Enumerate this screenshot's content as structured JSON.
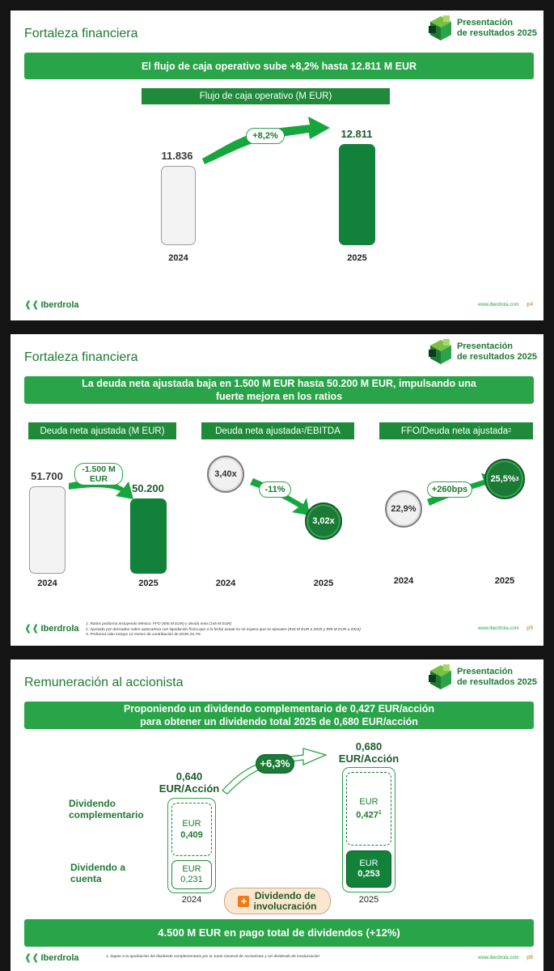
{
  "header": {
    "presentation_line1": "Presentación",
    "presentation_line2": "de resultados 2025"
  },
  "brand": {
    "logo_text": "Iberdrola",
    "website": "www.iberdrola.com",
    "colors": {
      "primary_green": "#2aa449",
      "dark_green": "#12823a",
      "gray": "#9c9c9c"
    }
  },
  "slide1": {
    "title": "Fortaleza financiera",
    "banner": "El flujo de caja operativo sube +8,2% hasta 12.811 M EUR",
    "chart_label": "Flujo de caja operativo (M EUR)",
    "growth_label": "+8,2%",
    "page": "p4"
  },
  "slide2": {
    "title": "Fortaleza financiera",
    "banner": "La deuda neta ajustada baja en 1.500 M EUR hasta 50.200 M EUR, impulsando una fuerte mejora en los ratios",
    "panel1_label": "Deuda neta ajustada (M EUR)",
    "panel1_change_line1": "-1.500 M",
    "panel1_change_line2": "EUR",
    "panel2_label": "Deuda neta ajustada",
    "panel2_label_sup": "1",
    "panel2_label_suffix": "/EBITDA",
    "panel2_change": "-11%",
    "panel3_label": "FFO/Deuda neta ajustada",
    "panel3_label_sup": "2",
    "panel3_change": "+260bps",
    "panel3_value_2025_sup": "3",
    "notes": [
      "1.    Ratios proforma incluyendo México: FFO (500 M EUR) y deuda neta (145 M EUR)",
      "2.    Ajustado por derivados sobre autocartera con liquidación física que a la fecha actual no se espera que se ejecuten (944 M EUR a 2025 y 995 M EUR a 2024)",
      "3.    Proforma ratio incluye 12 meses de contribución de ENW 25,7%"
    ],
    "page": "p5"
  },
  "slide3": {
    "title": "Remuneración al accionista",
    "banner_line1": "Proponiendo un dividendo complementario de 0,427 EUR/acción",
    "banner_line2": "para obtener un dividendo total 2025 de 0,680 EUR/acción",
    "label_complementario_line1": "Dividendo",
    "label_complementario_line2": "complementario",
    "label_cuenta_line1": "Dividendo a",
    "label_cuenta_line2": "cuenta",
    "unit": "EUR",
    "total_2024_line1": "0,640",
    "total_2024_line2": "EUR/Acción",
    "total_2025_line1": "0,680",
    "total_2025_line2": "EUR/Acción",
    "comp_2024": "0,409",
    "cuenta_2024": "0,231",
    "comp_2025": "0,427",
    "comp_2025_sup": "1",
    "cuenta_2025": "0,253",
    "growth_label": "+6,3%",
    "plus_sign": "+",
    "involucracion_line1": "Dividendo de",
    "involucracion_line2": "involucración",
    "bottom_banner": "4.500 M EUR en pago total de dividendos (+12%)",
    "note": "1. Sujeto a la aprobación del dividendo complementario por la Junta General de Accionistas y sin dividendo de involucración",
    "page": "p6"
  },
  "chart_data": [
    {
      "type": "bar",
      "title": "Flujo de caja operativo (M EUR)",
      "categories": [
        "2024",
        "2025"
      ],
      "values": [
        11836,
        12811
      ],
      "value_labels": [
        "11.836",
        "12.811"
      ]
    },
    {
      "type": "bar",
      "title": "Deuda neta ajustada (M EUR)",
      "categories": [
        "2024",
        "2025"
      ],
      "values": [
        51700,
        50200
      ],
      "value_labels": [
        "51.700",
        "50.200"
      ]
    },
    {
      "type": "scatter",
      "title": "Deuda neta ajustada/EBITDA",
      "categories": [
        "2024",
        "2025"
      ],
      "values": [
        3.4,
        3.02
      ],
      "value_labels": [
        "3,40x",
        "3,02x"
      ]
    },
    {
      "type": "scatter",
      "title": "FFO/Deuda neta ajustada",
      "categories": [
        "2024",
        "2025"
      ],
      "values": [
        22.9,
        25.5
      ],
      "value_labels": [
        "22,9%",
        "25,5%"
      ]
    },
    {
      "type": "bar",
      "title": "Remuneración al accionista (EUR/acción)",
      "categories": [
        "2024",
        "2025"
      ],
      "series": [
        {
          "name": "Dividendo a cuenta",
          "values": [
            0.231,
            0.253
          ]
        },
        {
          "name": "Dividendo complementario",
          "values": [
            0.409,
            0.427
          ]
        }
      ],
      "totals": [
        0.64,
        0.68
      ]
    }
  ]
}
